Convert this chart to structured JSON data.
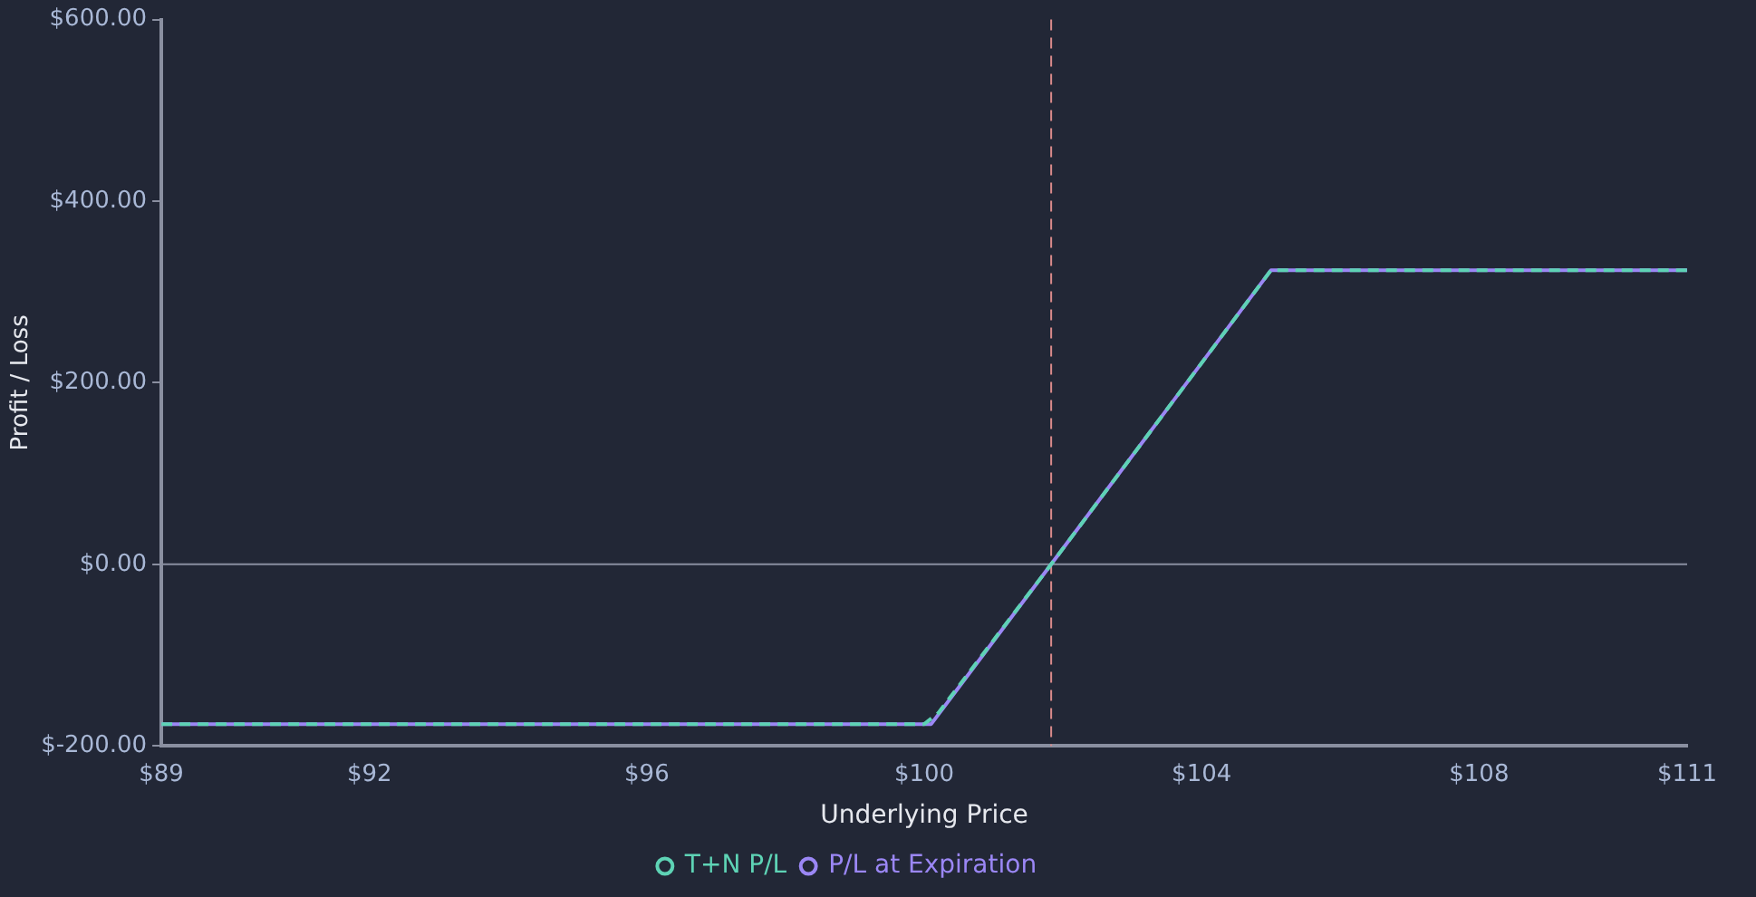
{
  "chart_data": {
    "type": "line",
    "xlabel": "Underlying Price",
    "ylabel": "Profit / Loss",
    "xlim": [
      89,
      111
    ],
    "xticks": [
      {
        "value": 89,
        "label": "$89"
      },
      {
        "value": 92,
        "label": "$92"
      },
      {
        "value": 96,
        "label": "$96"
      },
      {
        "value": 100,
        "label": "$100"
      },
      {
        "value": 104,
        "label": "$104"
      },
      {
        "value": 108,
        "label": "$108"
      },
      {
        "value": 111,
        "label": "$111"
      }
    ],
    "ylim": [
      -200,
      600
    ],
    "yticks": [
      {
        "value": -200,
        "label": "$-200.00"
      },
      {
        "value": 0,
        "label": "$0.00"
      },
      {
        "value": 200,
        "label": "$200.00"
      },
      {
        "value": 400,
        "label": "$400.00"
      },
      {
        "value": 600,
        "label": "$600.00"
      }
    ],
    "series": [
      {
        "name": "T+N P/L",
        "color": "#5ed3b5",
        "line_style": "dashed",
        "x": [
          89,
          100,
          100.2,
          101.83,
          105,
          111
        ],
        "values": [
          -176,
          -176,
          -164,
          0,
          324,
          324
        ]
      },
      {
        "name": "P/L at Expiration",
        "color": "#9b87f5",
        "line_style": "solid",
        "x": [
          89,
          100.1,
          101.83,
          105,
          111
        ],
        "values": [
          -176,
          -176,
          0,
          324,
          324
        ]
      }
    ],
    "ref_lines": [
      {
        "axis": "x",
        "value": 101.83,
        "color": "#d98a8a",
        "line_style": "dashed"
      },
      {
        "axis": "y",
        "value": 0,
        "color": "#8a8fa0",
        "line_style": "solid"
      }
    ],
    "grid": false,
    "legend": "bottom",
    "marker": "none"
  }
}
